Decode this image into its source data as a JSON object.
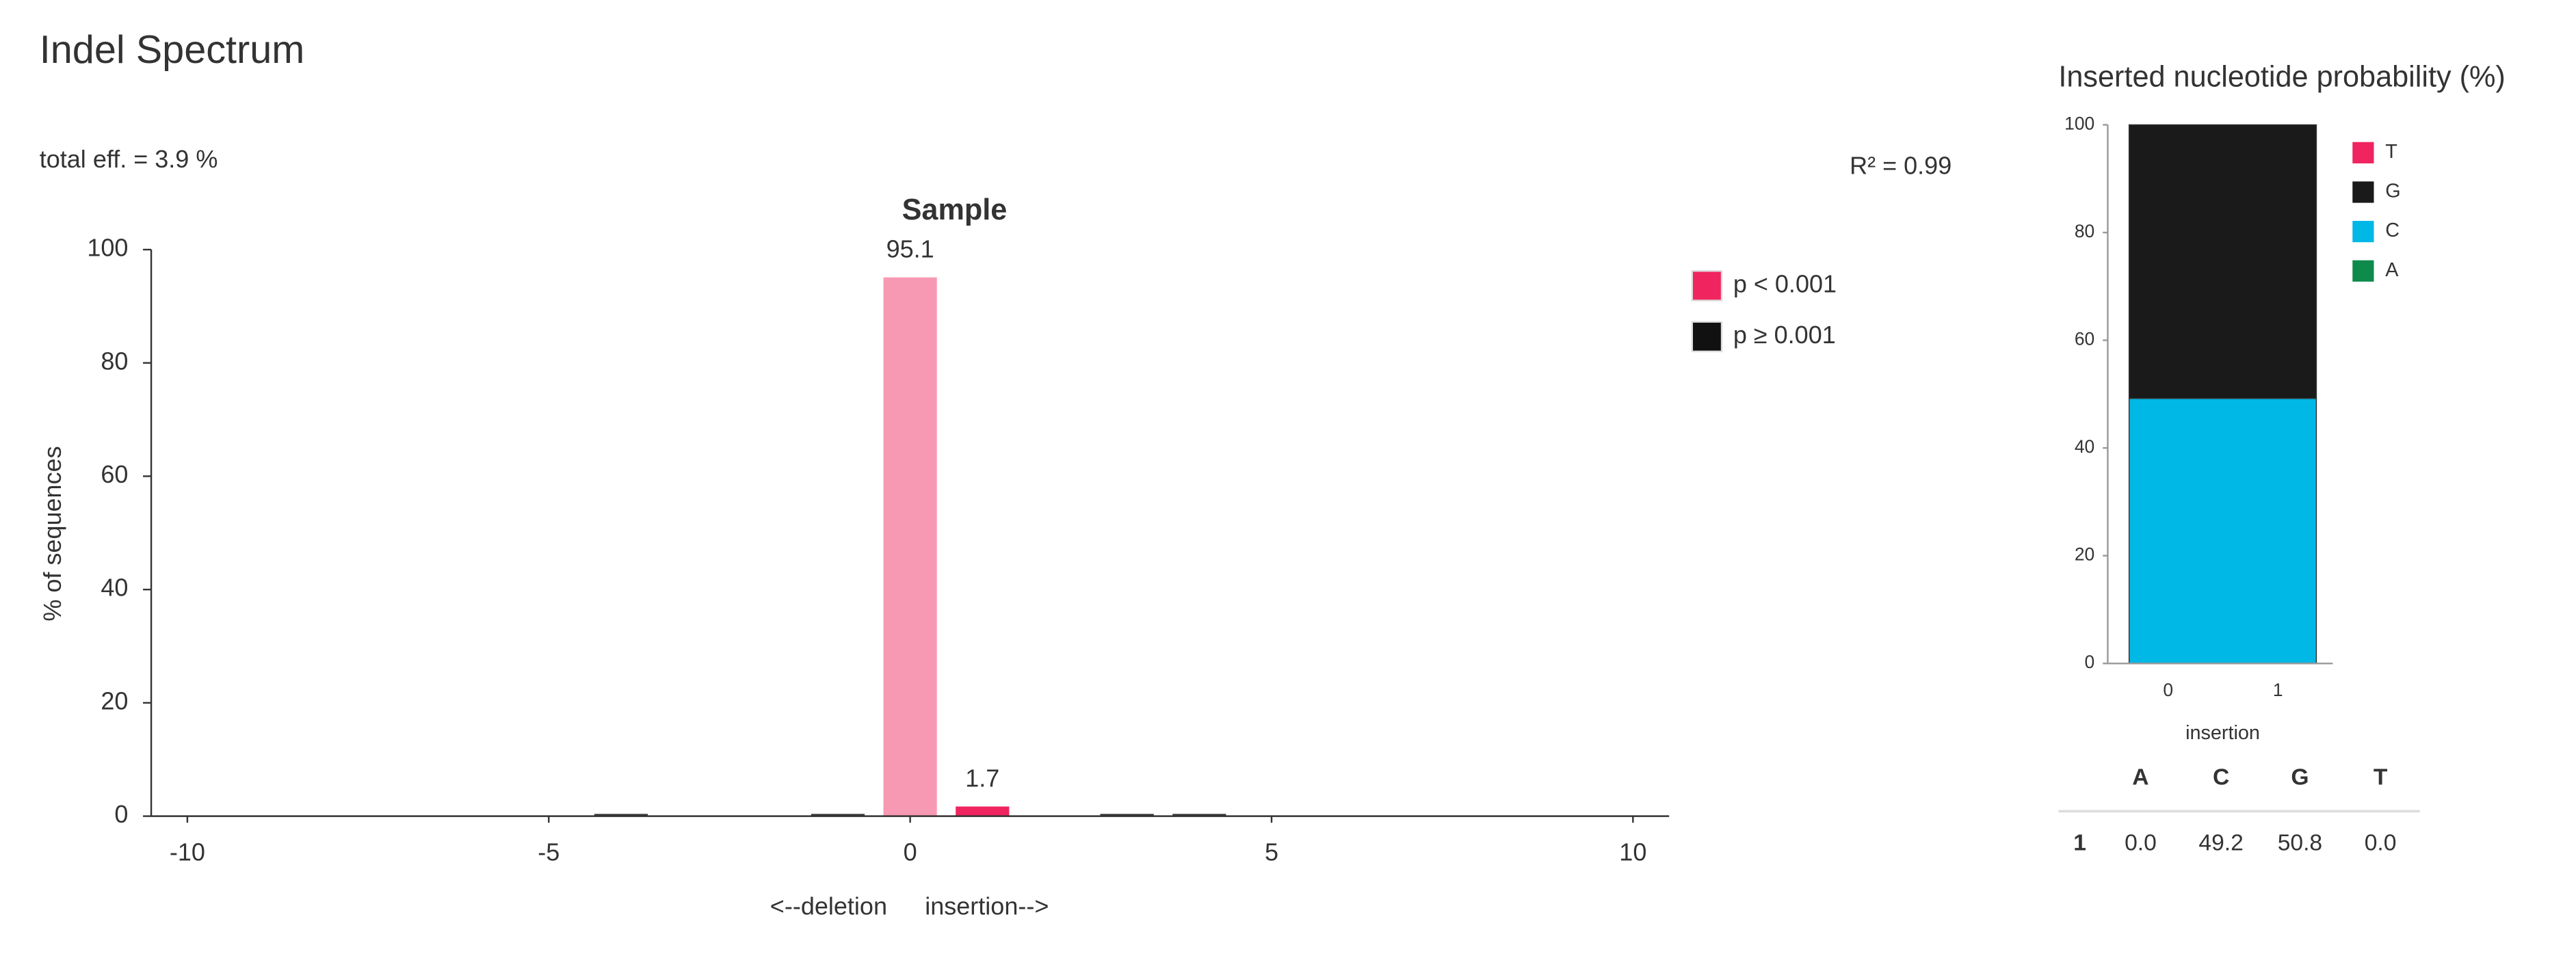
{
  "chart_data": [
    {
      "type": "bar",
      "header": "Indel Spectrum",
      "title": "Sample",
      "annotations": [
        "total eff. = 3.9 %",
        "R² = 0.99"
      ],
      "ylabel": "% of sequences",
      "xlabel": [
        "<--deletion",
        "insertion-->"
      ],
      "x": [
        -4,
        -1,
        0,
        1,
        3,
        4
      ],
      "values": [
        0.4,
        0.4,
        95.1,
        1.7,
        0.4,
        0.4
      ],
      "value_labels": [
        null,
        null,
        "95.1",
        "1.7",
        null,
        null
      ],
      "colors": [
        "#3a3a3a",
        "#3a3a3a",
        "#f899b4",
        "#f0245f",
        "#3a3a3a",
        "#3a3a3a"
      ],
      "xlim": [
        -10.5,
        10.5
      ],
      "xticks": [
        -10,
        -5,
        0,
        5,
        10
      ],
      "ylim": [
        0,
        100
      ],
      "yticks": [
        0,
        20,
        40,
        60,
        80,
        100
      ],
      "legend": [
        {
          "name": "p < 0.001",
          "color": "#f0245f"
        },
        {
          "name": "p ≥ 0.001",
          "color": "#111111"
        }
      ]
    },
    {
      "type": "stacked-bar",
      "title": "Inserted nucleotide probability (%)",
      "xlabel": "insertion",
      "series": [
        {
          "name": "A",
          "color": "#0e8a4a",
          "values": [
            0.0
          ]
        },
        {
          "name": "C",
          "color": "#00b8e6",
          "values": [
            49.2
          ]
        },
        {
          "name": "G",
          "color": "#1a1a1a",
          "values": [
            50.8
          ]
        },
        {
          "name": "T",
          "color": "#f0245f",
          "values": [
            0.0
          ]
        }
      ],
      "xlim": [
        -0.55,
        1.5
      ],
      "xticks": [
        0,
        1
      ],
      "ylim": [
        0,
        100
      ],
      "yticks": [
        0,
        20,
        40,
        60,
        80,
        100
      ],
      "table": {
        "columns": [
          "A",
          "C",
          "G",
          "T"
        ],
        "rows": [
          {
            "label": "1",
            "cells": [
              "0.0",
              "49.2",
              "50.8",
              "0.0"
            ]
          }
        ]
      }
    }
  ]
}
